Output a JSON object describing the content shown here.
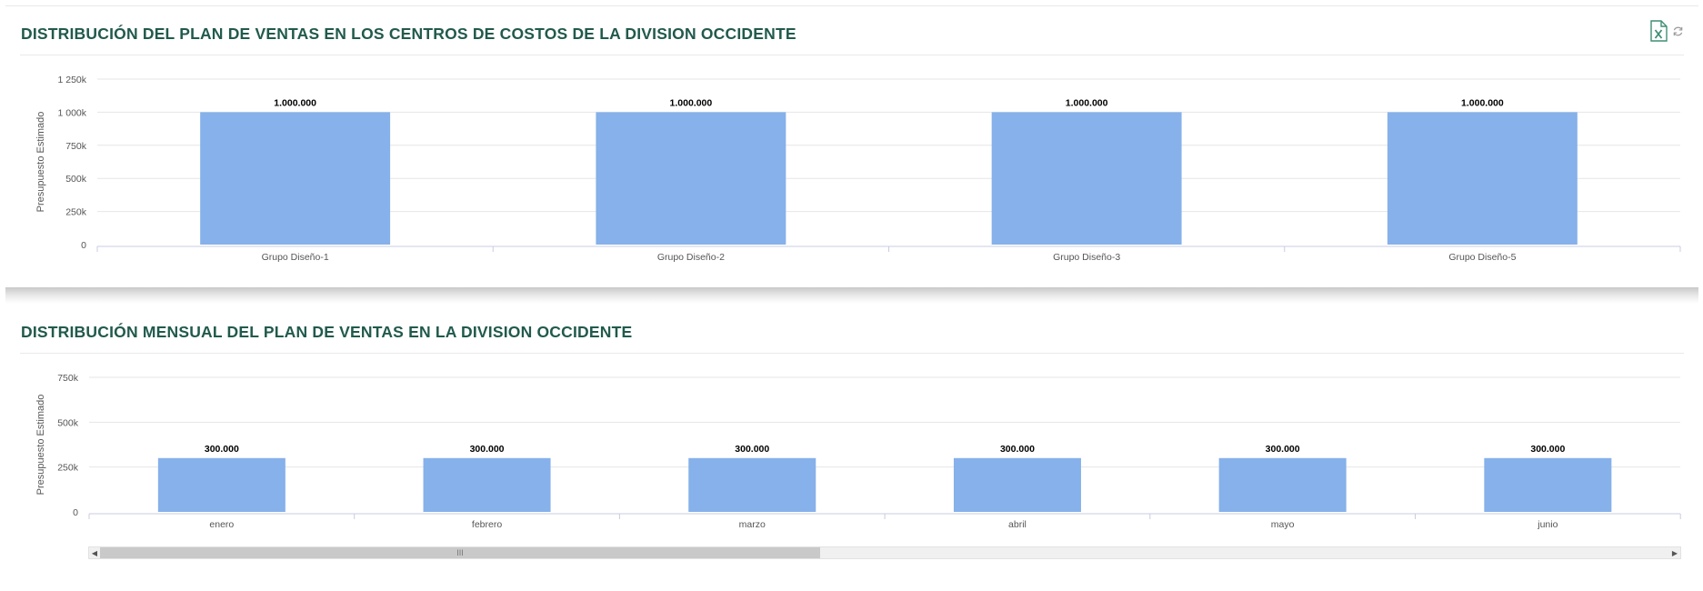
{
  "colors": {
    "title": "#215a4c",
    "bar": "#86b1ea",
    "grid": "#e6e6e6",
    "axis": "#c8cce0",
    "tick_text": "#555555"
  },
  "toolbar": {
    "export_icon": "excel-export-icon",
    "refresh_icon": "refresh-icon"
  },
  "charts": [
    {
      "title": "DISTRIBUCIÓN DEL PLAN DE VENTAS EN LOS CENTROS DE COSTOS DE LA DIVISION OCCIDENTE"
    },
    {
      "title": "DISTRIBUCIÓN MENSUAL DEL PLAN DE VENTAS EN LA DIVISION OCCIDENTE"
    }
  ],
  "scrollbar": {
    "left_icon": "scroll-left-icon",
    "right_icon": "scroll-right-icon",
    "grip": "III"
  },
  "chart_data": [
    {
      "type": "bar",
      "title": "DISTRIBUCIÓN DEL PLAN DE VENTAS EN LOS CENTROS DE COSTOS DE LA DIVISION OCCIDENTE",
      "categories": [
        "Grupo Diseño-1",
        "Grupo Diseño-2",
        "Grupo Diseño-3",
        "Grupo Diseño-5"
      ],
      "values": [
        1000000,
        1000000,
        1000000,
        1000000
      ],
      "data_labels": [
        "1.000.000",
        "1.000.000",
        "1.000.000",
        "1.000.000"
      ],
      "xlabel": "",
      "ylabel": "Presupuesto Estimado",
      "ylim": [
        0,
        1250000
      ],
      "yticks": [
        0,
        250000,
        500000,
        750000,
        1000000,
        1250000
      ],
      "ytick_labels": [
        "0",
        "250k",
        "500k",
        "750k",
        "1 000k",
        "1 250k"
      ],
      "grid": true,
      "legend": "none"
    },
    {
      "type": "bar",
      "title": "DISTRIBUCIÓN MENSUAL DEL PLAN DE VENTAS EN LA DIVISION OCCIDENTE",
      "categories": [
        "enero",
        "febrero",
        "marzo",
        "abril",
        "mayo",
        "junio"
      ],
      "values": [
        300000,
        300000,
        300000,
        300000,
        300000,
        300000
      ],
      "data_labels": [
        "300.000",
        "300.000",
        "300.000",
        "300.000",
        "300.000",
        "300.000"
      ],
      "xlabel": "",
      "ylabel": "Presupuesto Estimado",
      "ylim": [
        0,
        750000
      ],
      "yticks": [
        0,
        250000,
        500000,
        750000
      ],
      "ytick_labels": [
        "0",
        "250k",
        "500k",
        "750k"
      ],
      "grid": true,
      "legend": "none",
      "scrollable": true
    }
  ]
}
